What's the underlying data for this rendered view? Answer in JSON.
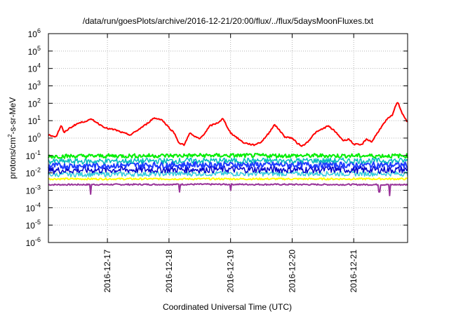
{
  "chart_data": {
    "type": "line",
    "title": "/data/run/goesPlots/archive/2016-12-21/20:00/flux/../flux/5daysMoonFluxes.txt",
    "xlabel": "Coordinated Universal Time (UTC)",
    "ylabel": {
      "base": "protons/cm",
      "sup": "2",
      "rest": "-s-sr-MeV"
    },
    "yscale": "log",
    "ylim": [
      1e-06,
      1000000.0
    ],
    "y_ticks": [
      {
        "value": 1e-06,
        "base": "10",
        "exp": "-6"
      },
      {
        "value": 1e-05,
        "base": "10",
        "exp": "-5"
      },
      {
        "value": 0.0001,
        "base": "10",
        "exp": "-4"
      },
      {
        "value": 0.001,
        "base": "10",
        "exp": "-3"
      },
      {
        "value": 0.01,
        "base": "10",
        "exp": "-2"
      },
      {
        "value": 0.1,
        "base": "10",
        "exp": "-1"
      },
      {
        "value": 1,
        "base": "10",
        "exp": "0"
      },
      {
        "value": 10,
        "base": "10",
        "exp": "1"
      },
      {
        "value": 100,
        "base": "10",
        "exp": "2"
      },
      {
        "value": 1000,
        "base": "10",
        "exp": "3"
      },
      {
        "value": 10000,
        "base": "10",
        "exp": "4"
      },
      {
        "value": 100000,
        "base": "10",
        "exp": "5"
      },
      {
        "value": 1000000,
        "base": "10",
        "exp": "6"
      }
    ],
    "xlim": [
      "2016-12-16T01:00",
      "2016-12-21T21:00"
    ],
    "x_ticks": [
      {
        "value": "2016-12-17T00:00",
        "label": "2016-12-17"
      },
      {
        "value": "2016-12-18T00:00",
        "label": "2016-12-18"
      },
      {
        "value": "2016-12-19T00:00",
        "label": "2016-12-19"
      },
      {
        "value": "2016-12-20T00:00",
        "label": "2016-12-20"
      },
      {
        "value": "2016-12-21T00:00",
        "label": "2016-12-21"
      }
    ],
    "grid": true,
    "legend": "none",
    "series": [
      {
        "color": "#ff0000",
        "width": 2,
        "noise": 0.04,
        "points": [
          [
            "2016-12-16T01:00",
            1.5
          ],
          [
            "2016-12-16T04:00",
            1.2
          ],
          [
            "2016-12-16T06:00",
            5.5
          ],
          [
            "2016-12-16T07:00",
            2.0
          ],
          [
            "2016-12-16T09:00",
            3.5
          ],
          [
            "2016-12-16T12:00",
            6.5
          ],
          [
            "2016-12-16T15:00",
            9.0
          ],
          [
            "2016-12-16T18:00",
            12.0
          ],
          [
            "2016-12-16T21:00",
            6.0
          ],
          [
            "2016-12-17T00:00",
            3.5
          ],
          [
            "2016-12-17T03:00",
            3.0
          ],
          [
            "2016-12-17T06:00",
            2.0
          ],
          [
            "2016-12-17T09:00",
            1.5
          ],
          [
            "2016-12-17T12:00",
            3.0
          ],
          [
            "2016-12-17T15:00",
            6.0
          ],
          [
            "2016-12-17T18:00",
            14.0
          ],
          [
            "2016-12-17T21:00",
            12.0
          ],
          [
            "2016-12-18T00:00",
            4.0
          ],
          [
            "2016-12-18T02:00",
            2.0
          ],
          [
            "2016-12-18T04:00",
            0.5
          ],
          [
            "2016-12-18T06:00",
            0.4
          ],
          [
            "2016-12-18T08:00",
            2.0
          ],
          [
            "2016-12-18T10:00",
            1.2
          ],
          [
            "2016-12-18T12:00",
            0.9
          ],
          [
            "2016-12-18T14:00",
            2.0
          ],
          [
            "2016-12-18T16:00",
            5.0
          ],
          [
            "2016-12-18T19:00",
            7.5
          ],
          [
            "2016-12-18T21:00",
            13.0
          ],
          [
            "2016-12-19T00:00",
            2.0
          ],
          [
            "2016-12-19T02:00",
            1.2
          ],
          [
            "2016-12-19T05:00",
            0.55
          ],
          [
            "2016-12-19T09:00",
            0.4
          ],
          [
            "2016-12-19T12:00",
            0.6
          ],
          [
            "2016-12-19T15:00",
            2.0
          ],
          [
            "2016-12-19T17:00",
            6.0
          ],
          [
            "2016-12-19T19:00",
            3.0
          ],
          [
            "2016-12-19T21:00",
            1.2
          ],
          [
            "2016-12-20T00:00",
            1.0
          ],
          [
            "2016-12-20T02:00",
            0.5
          ],
          [
            "2016-12-20T04:00",
            0.35
          ],
          [
            "2016-12-20T06:00",
            0.6
          ],
          [
            "2016-12-20T09:00",
            2.0
          ],
          [
            "2016-12-20T12:00",
            3.5
          ],
          [
            "2016-12-20T14:00",
            5.0
          ],
          [
            "2016-12-20T16:00",
            3.0
          ],
          [
            "2016-12-20T18:00",
            1.5
          ],
          [
            "2016-12-20T20:00",
            0.7
          ],
          [
            "2016-12-20T22:00",
            0.9
          ],
          [
            "2016-12-21T00:00",
            0.45
          ],
          [
            "2016-12-21T03:00",
            0.4
          ],
          [
            "2016-12-21T05:00",
            0.9
          ],
          [
            "2016-12-21T07:00",
            0.6
          ],
          [
            "2016-12-21T10:00",
            3.0
          ],
          [
            "2016-12-21T13:00",
            12.0
          ],
          [
            "2016-12-21T15:00",
            20.0
          ],
          [
            "2016-12-21T17:00",
            130.0
          ],
          [
            "2016-12-21T19:00",
            25.0
          ],
          [
            "2016-12-21T21:00",
            8.0
          ]
        ]
      },
      {
        "color": "#00ee00",
        "width": 2,
        "noise": 0.12,
        "points": [
          [
            "2016-12-16T01:00",
            0.09
          ],
          [
            "2016-12-18T12:00",
            0.1
          ],
          [
            "2016-12-21T21:00",
            0.095
          ]
        ]
      },
      {
        "color": "#00bbbb",
        "width": 1.5,
        "noise": 0.16,
        "points": [
          [
            "2016-12-16T01:00",
            0.045
          ],
          [
            "2016-12-18T12:00",
            0.05
          ],
          [
            "2016-12-21T21:00",
            0.05
          ]
        ]
      },
      {
        "color": "#1e3cff",
        "width": 2,
        "noise": 0.18,
        "points": [
          [
            "2016-12-16T01:00",
            0.025
          ],
          [
            "2016-12-18T12:00",
            0.03
          ],
          [
            "2016-12-21T21:00",
            0.028
          ]
        ]
      },
      {
        "color": "#0000cc",
        "width": 1.5,
        "noise": 0.2,
        "points": [
          [
            "2016-12-16T01:00",
            0.014
          ],
          [
            "2016-12-18T12:00",
            0.016
          ],
          [
            "2016-12-21T21:00",
            0.015
          ]
        ]
      },
      {
        "color": "#33ccdd",
        "width": 1.5,
        "noise": 0.14,
        "points": [
          [
            "2016-12-16T01:00",
            0.008
          ],
          [
            "2016-12-18T12:00",
            0.009
          ],
          [
            "2016-12-21T21:00",
            0.009
          ]
        ]
      },
      {
        "color": "#ffff00",
        "width": 2,
        "noise": 0.05,
        "points": [
          [
            "2016-12-16T01:00",
            0.0045
          ],
          [
            "2016-12-18T12:00",
            0.0045
          ],
          [
            "2016-12-21T21:00",
            0.0045
          ]
        ]
      },
      {
        "color": "#993399",
        "width": 2,
        "noise": 0.04,
        "points": [
          [
            "2016-12-16T01:00",
            0.0021
          ],
          [
            "2016-12-18T12:00",
            0.0022
          ],
          [
            "2016-12-21T21:00",
            0.0021
          ]
        ],
        "dips": [
          [
            "2016-12-16T17:30",
            0.0006
          ],
          [
            "2016-12-18T04:00",
            0.0008
          ],
          [
            "2016-12-19T00:00",
            0.001
          ],
          [
            "2016-12-21T10:00",
            0.0008
          ],
          [
            "2016-12-21T14:00",
            0.0005
          ]
        ]
      }
    ]
  }
}
